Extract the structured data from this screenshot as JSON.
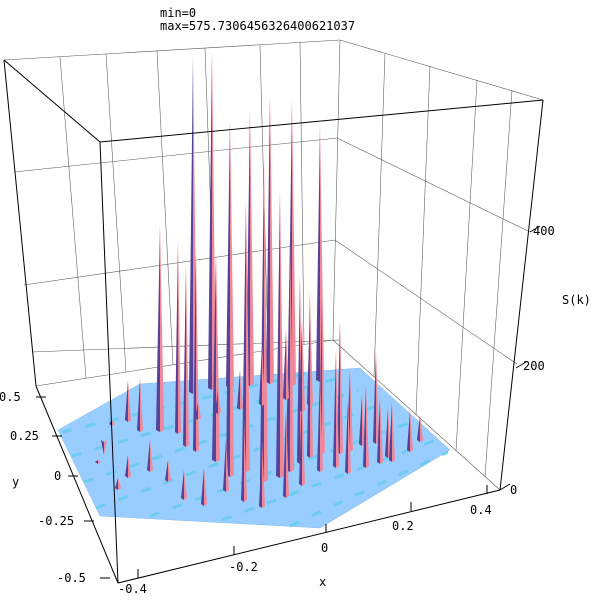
{
  "header": {
    "min_text": "min=0",
    "max_text": "max=575.7306456326400621037"
  },
  "chart_data": {
    "type": "surface3d",
    "title": "",
    "xlabel": "x",
    "ylabel": "y",
    "zlabel": "S(k)",
    "x_ticks": [
      "-0.4",
      "-0.2",
      "0",
      "0.2",
      "0.4"
    ],
    "y_ticks": [
      "-0.5",
      "-0.25",
      "0",
      "0.25",
      "0.5"
    ],
    "z_ticks": [
      "0",
      "200",
      "400"
    ],
    "xlim": [
      -0.45,
      0.45
    ],
    "ylim": [
      -0.5,
      0.5
    ],
    "zlim": [
      0,
      575.73
    ],
    "min": 0,
    "max": 575.7306456326401,
    "grid": true,
    "base_color": "#99ccff",
    "peak_color": "#ee8899",
    "peak_shadow_color": "#554499"
  }
}
